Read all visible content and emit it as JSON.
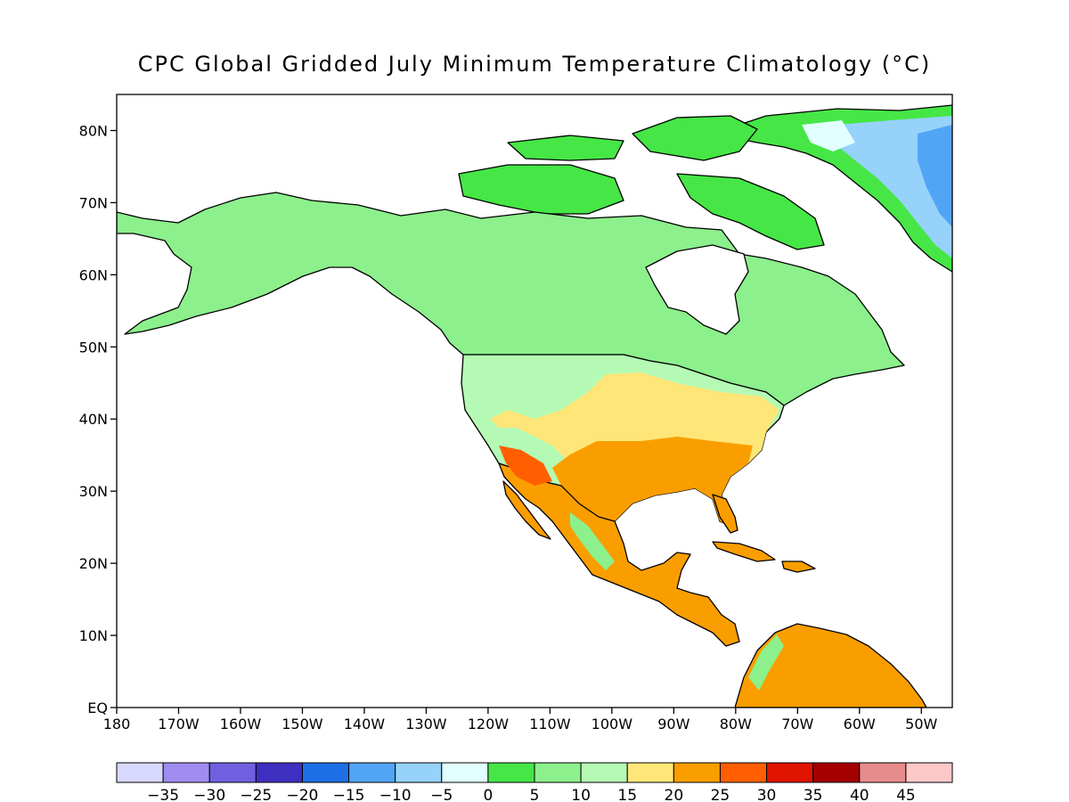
{
  "title": "CPC Global Gridded July Minimum Temperature Climatology (°C)",
  "map": {
    "projection": "lat-lon",
    "region": "North America",
    "lon_range": [
      -180,
      -45
    ],
    "lat_range": [
      0,
      85
    ],
    "lat_labels": [
      "EQ",
      "10N",
      "20N",
      "30N",
      "40N",
      "50N",
      "60N",
      "70N",
      "80N"
    ],
    "lon_labels": [
      "180",
      "170W",
      "160W",
      "150W",
      "140W",
      "130W",
      "120W",
      "110W",
      "100W",
      "90W",
      "80W",
      "70W",
      "60W",
      "50W"
    ],
    "ocean_color": "#ffffff",
    "coastline_color": "#000000"
  },
  "colorbar": {
    "colors": [
      "#d9d9ff",
      "#a08cf0",
      "#7060e0",
      "#3f2fc0",
      "#1e6fe6",
      "#50a5f5",
      "#96d2fa",
      "#e1ffff",
      "#46e646",
      "#8cf08c",
      "#b4fab4",
      "#ffe678",
      "#fa9e00",
      "#ff5f00",
      "#e11400",
      "#a50000",
      "#e68c8c",
      "#ffc8c8"
    ],
    "labels": [
      "−35",
      "−30",
      "−25",
      "−20",
      "−15",
      "−10",
      "−5",
      "0",
      "5",
      "10",
      "15",
      "20",
      "25",
      "30",
      "35",
      "40",
      "45"
    ]
  },
  "regions": [
    {
      "name": "alaska",
      "color": "#8cf08c"
    },
    {
      "name": "canada",
      "color": "#8cf08c"
    },
    {
      "name": "arctic-islands",
      "color": "#46e646"
    },
    {
      "name": "greenland-coast",
      "color": "#46e646"
    },
    {
      "name": "greenland-ice",
      "color": "#96d2fa"
    },
    {
      "name": "usa-north",
      "color": "#b4fab4"
    },
    {
      "name": "usa-south",
      "color": "#ffe678"
    },
    {
      "name": "mexico-gulf",
      "color": "#fa9e00"
    },
    {
      "name": "south-america",
      "color": "#fa9e00"
    },
    {
      "name": "desert-southwest",
      "color": "#ff5f00"
    }
  ]
}
